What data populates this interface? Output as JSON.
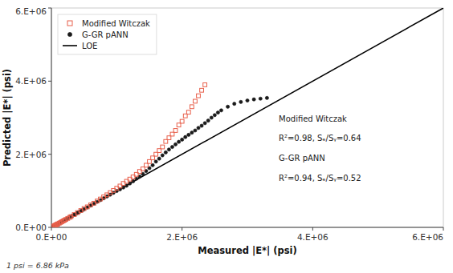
{
  "chart_data": {
    "type": "scatter",
    "x_label": "Measured |E*| (psi)",
    "y_label": "Predicted |E*| (psi)",
    "footnote": "1 psi = 6.86 kPa",
    "annotations": [
      "Modified Witczak",
      "R²=0.98, Sₑ/Sᵧ=0.64",
      "G-GR pANN",
      "R²=0.94, Sₑ/Sᵧ=0.52"
    ],
    "xlim": [
      0,
      6000000
    ],
    "ylim": [
      0,
      6000000
    ],
    "xticks": [
      {
        "value": 0,
        "label": "0.E+00"
      },
      {
        "value": 2000000,
        "label": "2.E+06"
      },
      {
        "value": 4000000,
        "label": "4.E+06"
      },
      {
        "value": 6000000,
        "label": "6.E+06"
      }
    ],
    "yticks": [
      {
        "value": 0,
        "label": "0.E+00"
      },
      {
        "value": 2000000,
        "label": "2.E+06"
      },
      {
        "value": 4000000,
        "label": "4.E+06"
      },
      {
        "value": 6000000,
        "label": "6.E+06"
      }
    ],
    "grid": false,
    "legend": "upper left",
    "series": [
      {
        "name": "Modified Witczak",
        "type": "scatter",
        "color": "#E8604C",
        "marker": "open-square",
        "x": [
          20000,
          30000,
          40000,
          50000,
          60000,
          70000,
          80000,
          90000,
          100000,
          120000,
          140000,
          160000,
          180000,
          200000,
          220000,
          250000,
          280000,
          300000,
          350000,
          400000,
          450000,
          500000,
          550000,
          600000,
          650000,
          700000,
          750000,
          800000,
          850000,
          900000,
          950000,
          1000000,
          1050000,
          1100000,
          1150000,
          1200000,
          1250000,
          1300000,
          1350000,
          1400000,
          1450000,
          1500000,
          1550000,
          1600000,
          1650000,
          1700000,
          1750000,
          1800000,
          1850000,
          1900000,
          1950000,
          2000000,
          2050000,
          2100000,
          2150000,
          2200000,
          2250000,
          2300000,
          2350000
        ],
        "values": [
          18000,
          28000,
          38000,
          48000,
          57000,
          67000,
          77000,
          87000,
          97000,
          115000,
          135000,
          155000,
          175000,
          195000,
          215000,
          245000,
          275000,
          295000,
          350000,
          405000,
          460000,
          515000,
          560000,
          615000,
          660000,
          720000,
          775000,
          835000,
          890000,
          950000,
          1010000,
          1070000,
          1130000,
          1200000,
          1260000,
          1320000,
          1380000,
          1450000,
          1530000,
          1600000,
          1700000,
          1800000,
          1900000,
          2000000,
          2100000,
          2200000,
          2350000,
          2450000,
          2550000,
          2650000,
          2800000,
          2900000,
          3050000,
          3150000,
          3300000,
          3450000,
          3600000,
          3750000,
          3900000
        ]
      },
      {
        "name": "G-GR pANN",
        "type": "scatter",
        "color": "#1a1a1a",
        "marker": "circle",
        "x": [
          10000,
          15000,
          20000,
          25000,
          30000,
          35000,
          40000,
          45000,
          50000,
          55000,
          60000,
          65000,
          70000,
          75000,
          80000,
          85000,
          90000,
          95000,
          100000,
          110000,
          120000,
          130000,
          140000,
          150000,
          160000,
          170000,
          180000,
          190000,
          200000,
          220000,
          240000,
          260000,
          280000,
          300000,
          320000,
          340000,
          360000,
          380000,
          400000,
          420000,
          450000,
          480000,
          500000,
          550000,
          600000,
          650000,
          700000,
          750000,
          800000,
          850000,
          900000,
          950000,
          1000000,
          1050000,
          1100000,
          1150000,
          1200000,
          1250000,
          1300000,
          1350000,
          1400000,
          1450000,
          1500000,
          1550000,
          1600000,
          1650000,
          1700000,
          1750000,
          1800000,
          1850000,
          1900000,
          1950000,
          2000000,
          2050000,
          2100000,
          2150000,
          2200000,
          2250000,
          2300000,
          2350000,
          2400000,
          2450000,
          2500000,
          2550000,
          2600000,
          2700000,
          2800000,
          2900000,
          3000000,
          3100000,
          3200000,
          3300000
        ],
        "values": [
          10000,
          14000,
          19000,
          24000,
          28000,
          33000,
          38000,
          43000,
          47000,
          52000,
          57000,
          62000,
          67000,
          72000,
          77000,
          82000,
          87000,
          91000,
          96000,
          106000,
          116000,
          126000,
          136000,
          146000,
          156000,
          166000,
          176000,
          186000,
          196000,
          216000,
          236000,
          256000,
          275000,
          295000,
          315000,
          335000,
          355000,
          375000,
          395000,
          415000,
          445000,
          475000,
          495000,
          545000,
          595000,
          645000,
          695000,
          745000,
          795000,
          845000,
          895000,
          945000,
          995000,
          1040000,
          1090000,
          1140000,
          1200000,
          1260000,
          1330000,
          1390000,
          1460000,
          1540000,
          1620000,
          1700000,
          1800000,
          1880000,
          1970000,
          2050000,
          2130000,
          2200000,
          2270000,
          2340000,
          2400000,
          2470000,
          2530000,
          2590000,
          2650000,
          2720000,
          2780000,
          2850000,
          2920000,
          3000000,
          3070000,
          3140000,
          3200000,
          3300000,
          3380000,
          3430000,
          3470000,
          3500000,
          3520000,
          3540000
        ]
      },
      {
        "name": "LOE",
        "type": "line",
        "color": "#000000",
        "line_style": "solid",
        "x": [
          0,
          6000000
        ],
        "values": [
          0,
          6000000
        ]
      }
    ]
  }
}
